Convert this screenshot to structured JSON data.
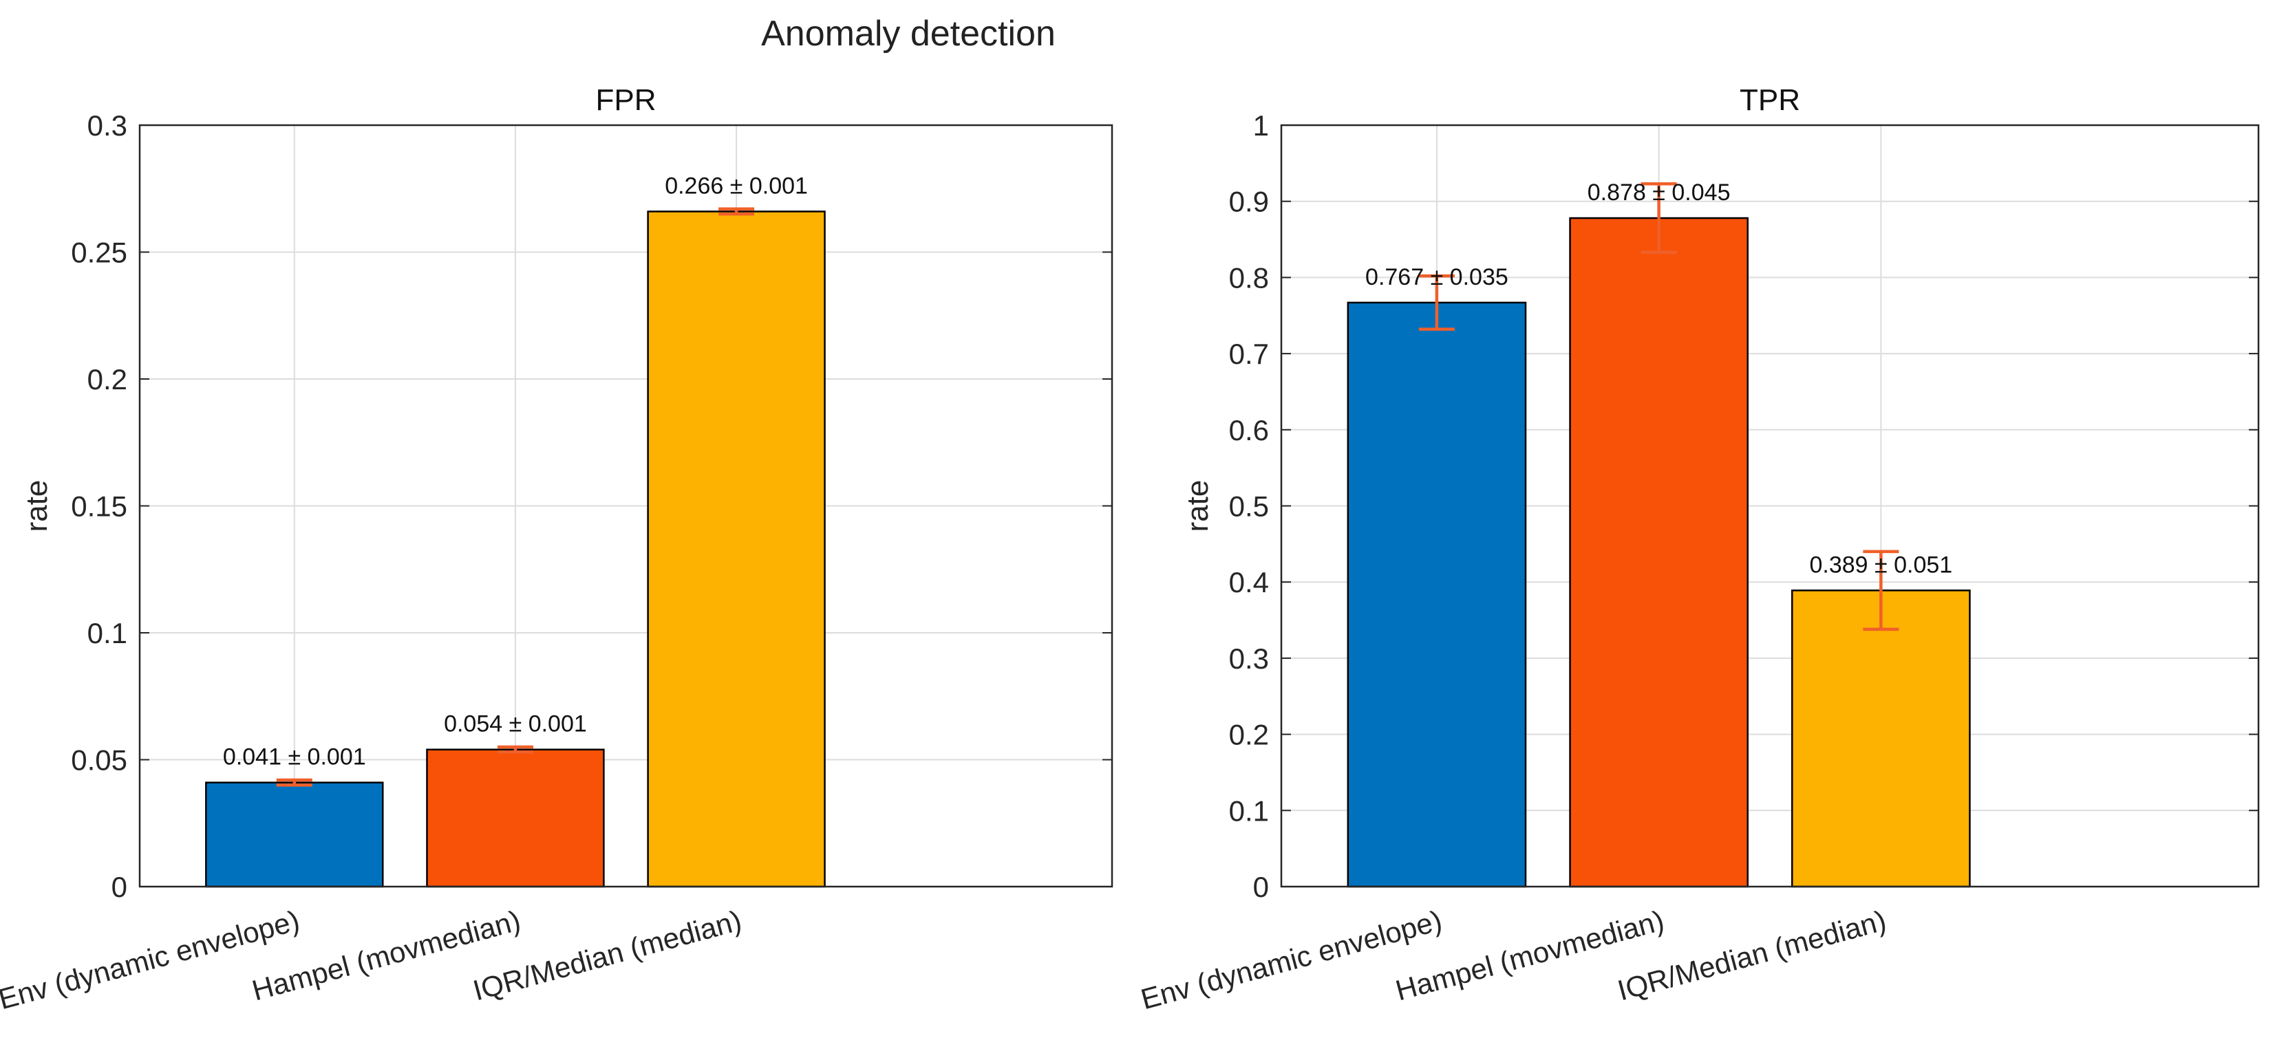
{
  "figure_title": "Anomaly detection",
  "chart_data": [
    {
      "type": "bar",
      "title": "FPR",
      "xlabel": "",
      "ylabel": "rate",
      "ylim": [
        0,
        0.3
      ],
      "yticks": [
        0,
        0.05,
        0.1,
        0.15,
        0.2,
        0.25,
        0.3
      ],
      "ytick_labels": [
        "0",
        "0.05",
        "0.1",
        "0.15",
        "0.2",
        "0.25",
        "0.3"
      ],
      "grid": true,
      "categories": [
        "Env (dynamic envelope)",
        "Hampel (movmedian)",
        "IQR/Median (median)"
      ],
      "values": [
        0.041,
        0.054,
        0.266
      ],
      "errors": [
        0.001,
        0.001,
        0.001
      ],
      "data_labels": [
        "0.041 ± 0.001",
        "0.054 ± 0.001",
        "0.266 ± 0.001"
      ],
      "bar_colors": [
        "#0072BD",
        "#F75208",
        "#FDB100"
      ],
      "error_color": "#F0602A"
    },
    {
      "type": "bar",
      "title": "TPR",
      "xlabel": "",
      "ylabel": "rate",
      "ylim": [
        0,
        1
      ],
      "yticks": [
        0,
        0.1,
        0.2,
        0.3,
        0.4,
        0.5,
        0.6,
        0.7,
        0.8,
        0.9,
        1
      ],
      "ytick_labels": [
        "0",
        "0.1",
        "0.2",
        "0.3",
        "0.4",
        "0.5",
        "0.6",
        "0.7",
        "0.8",
        "0.9",
        "1"
      ],
      "grid": true,
      "categories": [
        "Env (dynamic envelope)",
        "Hampel (movmedian)",
        "IQR/Median (median)"
      ],
      "values": [
        0.767,
        0.878,
        0.389
      ],
      "errors": [
        0.035,
        0.045,
        0.051
      ],
      "data_labels": [
        "0.767 ± 0.035",
        "0.878 ± 0.045",
        "0.389 ± 0.051"
      ],
      "bar_colors": [
        "#0072BD",
        "#F75208",
        "#FDB100"
      ],
      "error_color": "#F0602A"
    }
  ]
}
